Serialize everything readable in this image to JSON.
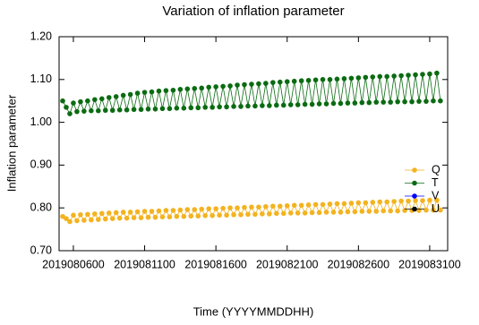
{
  "chart_data": {
    "type": "line",
    "title": "Variation of inflation parameter",
    "x_label": "Time (YYYYMMDDHH)",
    "y_label": "Inflation parameter",
    "categories": [
      null,
      null,
      null,
      "2019080600",
      null,
      null,
      null,
      null,
      null,
      null,
      null,
      null,
      null,
      null,
      null,
      null,
      null,
      null,
      null,
      null,
      null,
      null,
      null,
      "2019081100",
      null,
      null,
      null,
      null,
      null,
      null,
      null,
      null,
      null,
      null,
      null,
      null,
      null,
      null,
      null,
      null,
      null,
      null,
      null,
      "2019081600",
      null,
      null,
      null,
      null,
      null,
      null,
      null,
      null,
      null,
      null,
      null,
      null,
      null,
      null,
      null,
      null,
      null,
      null,
      null,
      "2019082100",
      null,
      null,
      null,
      null,
      null,
      null,
      null,
      null,
      null,
      null,
      null,
      null,
      null,
      null,
      null,
      null,
      null,
      null,
      null,
      "2019082600",
      null,
      null,
      null,
      null,
      null,
      null,
      null,
      null,
      null,
      null,
      null,
      null,
      null,
      null,
      null,
      null,
      null,
      null,
      null,
      "2019083100",
      null,
      null,
      null
    ],
    "ylim": [
      0.7,
      1.2
    ],
    "yticks": [
      {
        "value": 0.7,
        "label": "0.70"
      },
      {
        "value": 0.8,
        "label": "0.80"
      },
      {
        "value": 0.9,
        "label": "0.90"
      },
      {
        "value": 1.0,
        "label": "1.00"
      },
      {
        "value": 1.1,
        "label": "1.10"
      },
      {
        "value": 1.2,
        "label": "1.20"
      }
    ],
    "legend": "right",
    "series": [
      {
        "name": "Q",
        "color": "#f3b320",
        "values": [
          0.78,
          0.775,
          0.768,
          0.783,
          0.77,
          0.784,
          0.771,
          0.785,
          0.772,
          0.786,
          0.773,
          0.787,
          0.774,
          0.788,
          0.775,
          0.789,
          0.776,
          0.79,
          0.776,
          0.79,
          0.777,
          0.791,
          0.777,
          0.792,
          0.778,
          0.792,
          0.778,
          0.793,
          0.779,
          0.794,
          0.779,
          0.794,
          0.78,
          0.795,
          0.78,
          0.796,
          0.781,
          0.796,
          0.781,
          0.797,
          0.782,
          0.798,
          0.782,
          0.798,
          0.783,
          0.799,
          0.783,
          0.8,
          0.784,
          0.8,
          0.784,
          0.801,
          0.785,
          0.802,
          0.785,
          0.802,
          0.786,
          0.803,
          0.786,
          0.804,
          0.787,
          0.804,
          0.787,
          0.805,
          0.788,
          0.806,
          0.788,
          0.806,
          0.788,
          0.807,
          0.789,
          0.808,
          0.789,
          0.808,
          0.79,
          0.809,
          0.79,
          0.81,
          0.79,
          0.81,
          0.791,
          0.811,
          0.791,
          0.812,
          0.792,
          0.812,
          0.792,
          0.813,
          0.792,
          0.814,
          0.793,
          0.814,
          0.793,
          0.815,
          0.793,
          0.816,
          0.794,
          0.816,
          0.794,
          0.817,
          0.794,
          0.817,
          0.795,
          0.818,
          0.795,
          0.818,
          0.795
        ]
      },
      {
        "name": "T",
        "color": "#0b6b12",
        "values": [
          1.05,
          1.035,
          1.02,
          1.045,
          1.025,
          1.048,
          1.026,
          1.05,
          1.027,
          1.053,
          1.027,
          1.055,
          1.028,
          1.058,
          1.028,
          1.06,
          1.029,
          1.063,
          1.029,
          1.065,
          1.03,
          1.068,
          1.03,
          1.07,
          1.031,
          1.071,
          1.031,
          1.073,
          1.032,
          1.074,
          1.032,
          1.075,
          1.033,
          1.077,
          1.033,
          1.078,
          1.034,
          1.079,
          1.034,
          1.08,
          1.035,
          1.082,
          1.035,
          1.083,
          1.036,
          1.084,
          1.036,
          1.085,
          1.037,
          1.087,
          1.037,
          1.088,
          1.038,
          1.089,
          1.038,
          1.09,
          1.039,
          1.091,
          1.039,
          1.093,
          1.04,
          1.094,
          1.04,
          1.095,
          1.041,
          1.096,
          1.041,
          1.097,
          1.042,
          1.098,
          1.042,
          1.099,
          1.043,
          1.1,
          1.043,
          1.1,
          1.044,
          1.101,
          1.044,
          1.102,
          1.045,
          1.103,
          1.045,
          1.104,
          1.046,
          1.105,
          1.046,
          1.106,
          1.047,
          1.107,
          1.047,
          1.107,
          1.047,
          1.108,
          1.048,
          1.109,
          1.048,
          1.11,
          1.048,
          1.111,
          1.049,
          1.112,
          1.049,
          1.113,
          1.05,
          1.115,
          1.05
        ]
      },
      {
        "name": "V",
        "color": "#0000ff",
        "values": [
          null,
          null,
          null,
          null,
          null,
          null,
          null,
          null,
          null,
          null,
          null,
          null,
          null,
          null,
          null,
          null,
          null,
          null,
          null,
          null,
          null,
          null,
          null,
          null,
          null,
          null,
          null,
          null,
          null,
          null,
          null,
          null,
          null,
          null,
          null,
          null,
          null,
          null,
          null,
          null,
          null,
          null,
          null,
          null,
          null,
          null,
          null,
          null,
          null,
          null,
          null,
          null,
          null,
          null,
          null,
          null,
          null,
          null,
          null,
          null,
          null,
          null,
          null,
          null,
          null,
          null,
          null,
          null,
          null,
          null,
          null,
          null,
          null,
          null,
          null,
          null,
          null,
          null,
          null,
          null,
          null,
          null,
          null,
          null,
          null,
          null,
          null,
          null,
          null,
          null,
          null,
          null,
          null,
          null,
          null,
          null,
          null,
          null,
          null,
          null,
          null,
          null,
          null,
          null,
          null,
          null,
          null
        ]
      },
      {
        "name": "U",
        "color": "#000000",
        "values": [
          null,
          null,
          null,
          null,
          null,
          null,
          null,
          null,
          null,
          null,
          null,
          null,
          null,
          null,
          null,
          null,
          null,
          null,
          null,
          null,
          null,
          null,
          null,
          null,
          null,
          null,
          null,
          null,
          null,
          null,
          null,
          null,
          null,
          null,
          null,
          null,
          null,
          null,
          null,
          null,
          null,
          null,
          null,
          null,
          null,
          null,
          null,
          null,
          null,
          null,
          null,
          null,
          null,
          null,
          null,
          null,
          null,
          null,
          null,
          null,
          null,
          null,
          null,
          null,
          null,
          null,
          null,
          null,
          null,
          null,
          null,
          null,
          null,
          null,
          null,
          null,
          null,
          null,
          null,
          null,
          null,
          null,
          null,
          null,
          null,
          null,
          null,
          null,
          null,
          null,
          null,
          null,
          null,
          null,
          null,
          null,
          null,
          null,
          null,
          null,
          null,
          null,
          null,
          null,
          null,
          null,
          null
        ]
      }
    ]
  }
}
